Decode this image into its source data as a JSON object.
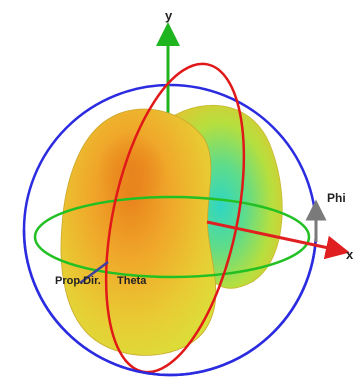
{
  "labels": {
    "y_axis": "y",
    "x_axis": "x",
    "phi": "Phi",
    "prop_dir": "Prop.Dir.",
    "theta": "Theta"
  },
  "colors": {
    "background": "#ffffff",
    "y_axis": "#1fb51f",
    "x_axis": "#e02020",
    "red_ring": "#e01818",
    "blue_ring": "#2b2be0",
    "green_ring": "#22c022",
    "pattern_outer": "#d8e23a",
    "pattern_mid": "#f0b72a",
    "pattern_hot": "#e8821c",
    "pattern_cool": "#2fd6c4",
    "phi_arrow": "#7a7a7a",
    "prop_arrow": "#4040a0"
  }
}
